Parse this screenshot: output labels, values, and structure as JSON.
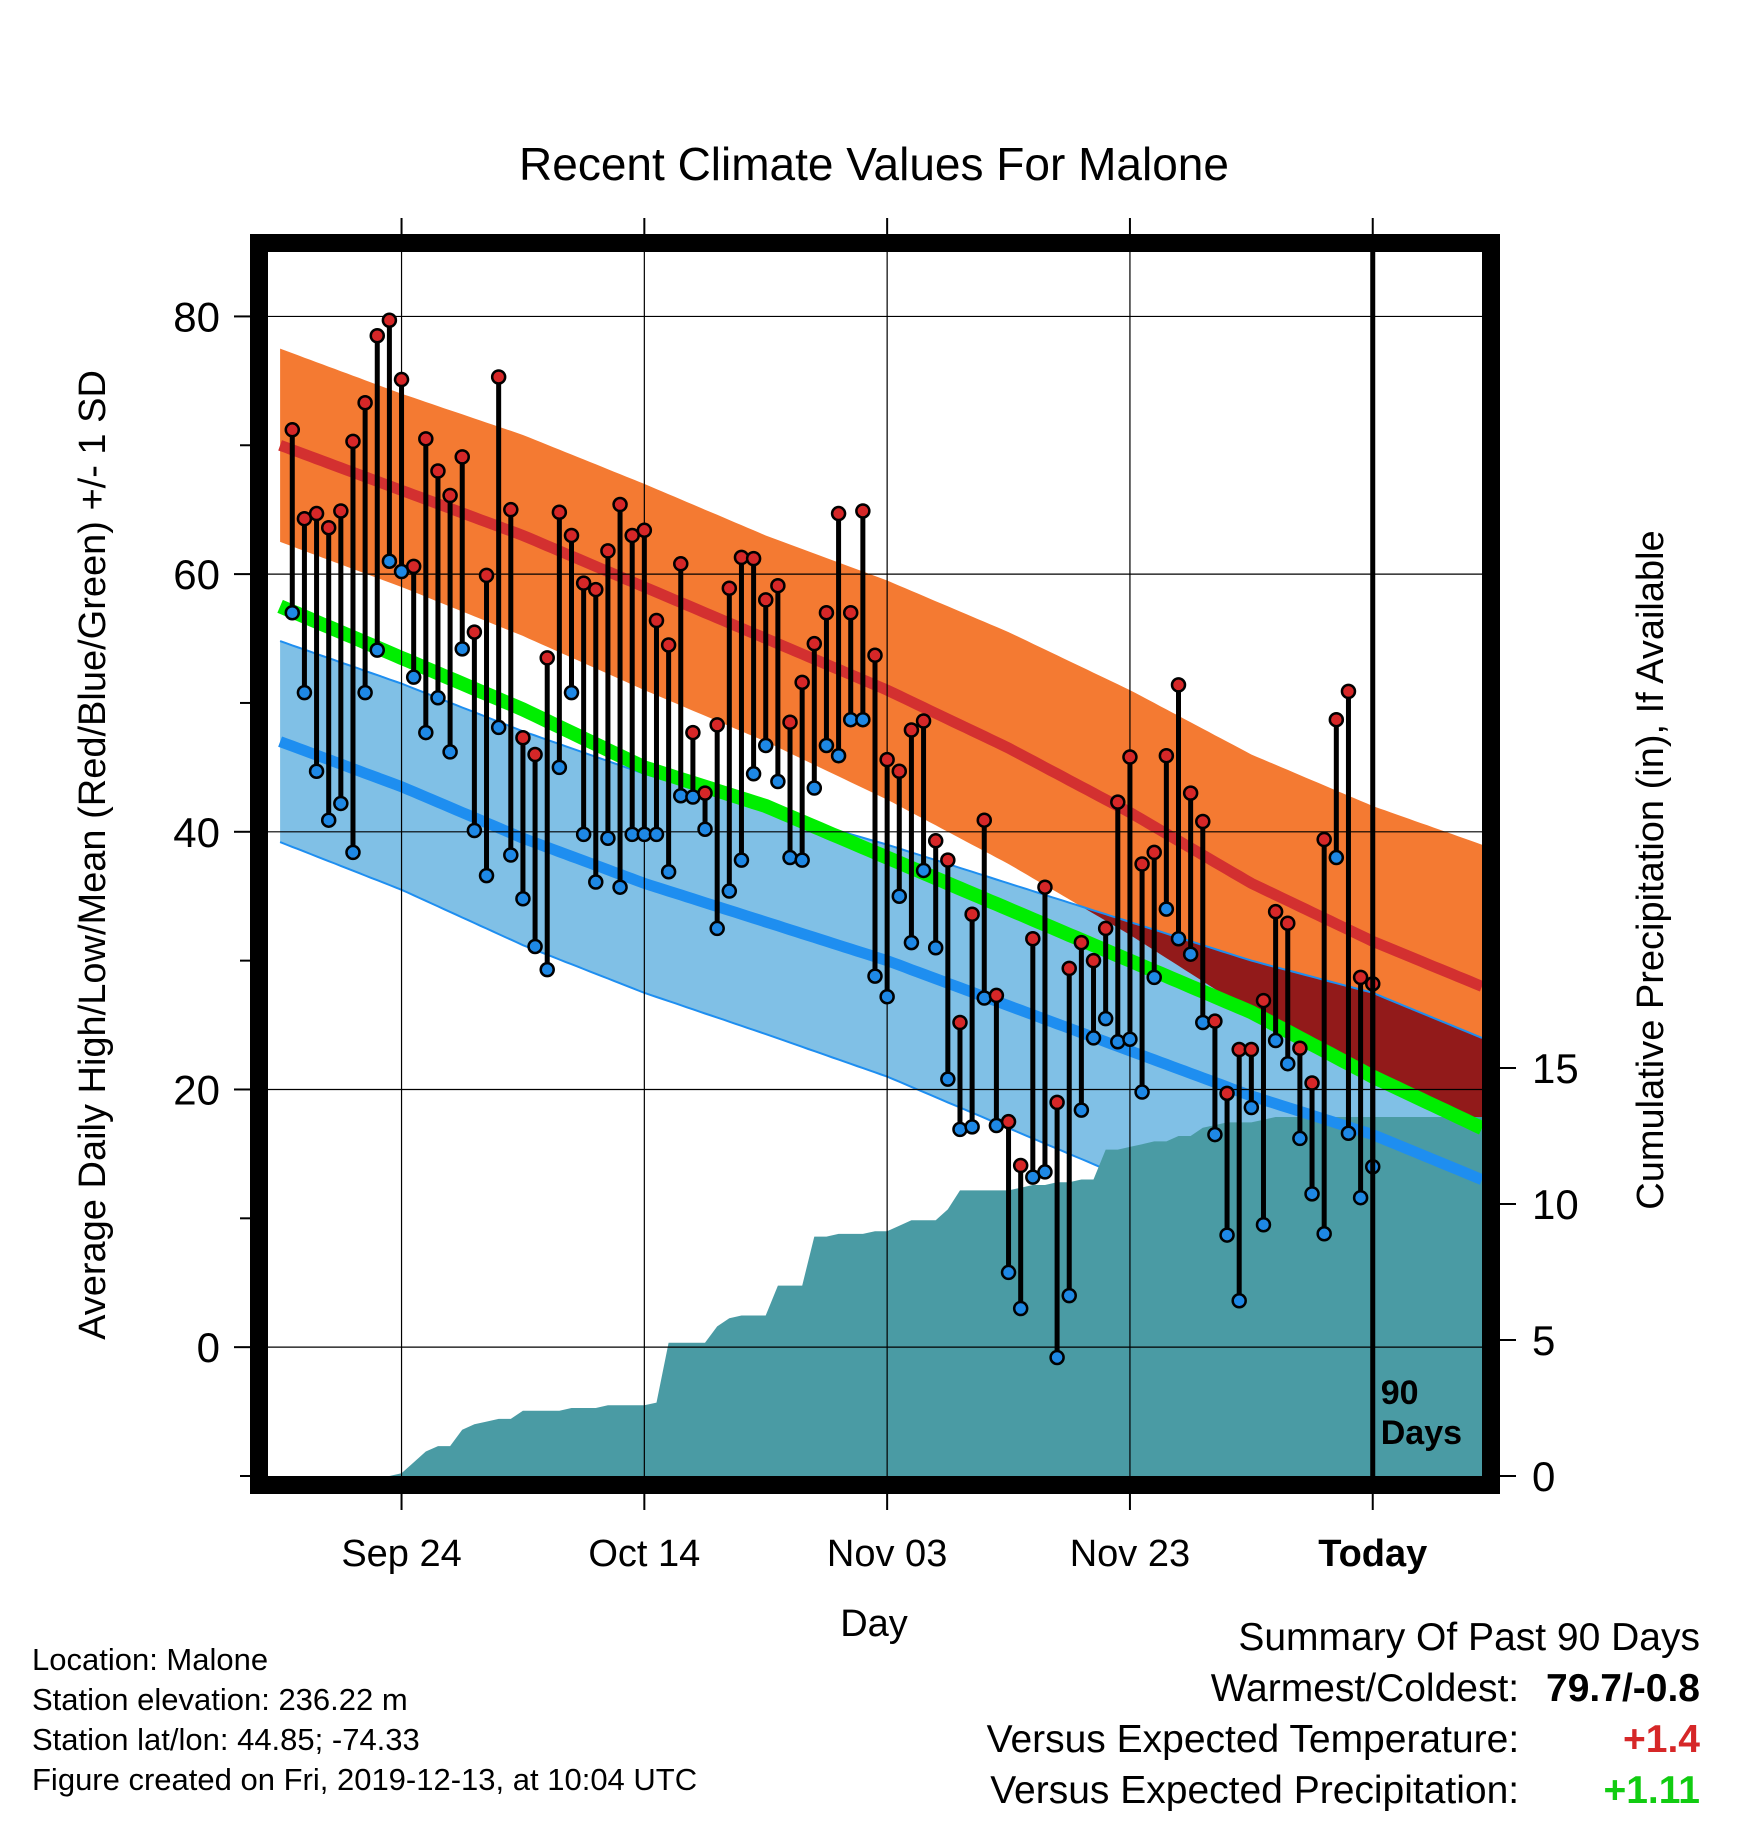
{
  "chart_data": {
    "type": "line",
    "title": "Recent Climate Values For Malone",
    "xlabel": "Day",
    "ylabel_left": "Average Daily High/Low/Mean (Red/Blue/Green) +/- 1 SD",
    "ylabel_right": "Cumulative Precipitation (in), If Available",
    "x_tick_labels": [
      "Sep 24",
      "Oct 14",
      "Nov 03",
      "Nov 23",
      "Today"
    ],
    "x_tick_days": [
      0,
      20,
      40,
      60,
      80
    ],
    "x_range_days": [
      -11,
      89
    ],
    "y_left_ticks": [
      0,
      20,
      40,
      60,
      80
    ],
    "y_left_range": [
      -10,
      85
    ],
    "y_right_ticks": [
      0,
      5,
      10,
      15
    ],
    "y_right_range": [
      0,
      45
    ],
    "today_marker": {
      "day": 80,
      "label_line1": "90",
      "label_line2": "Days"
    },
    "grid": true,
    "colors": {
      "high_band": "#f47a32",
      "high_mean": "#d33030",
      "low_band": "#80c0e6",
      "low_mean": "#1e8ef0",
      "mean_line": "#00ee00",
      "overlap": "#921a1a",
      "precip": "#4a9ba4",
      "high_dot": "#d62728",
      "low_dot": "#1e88e5"
    },
    "normals": {
      "days": [
        -10,
        0,
        10,
        20,
        30,
        40,
        50,
        60,
        70,
        80,
        89
      ],
      "high_mean": [
        70,
        66.5,
        63,
        59,
        55,
        51,
        46.5,
        41.5,
        36,
        31.5,
        28
      ],
      "high_sd": [
        7.5,
        7.5,
        7.8,
        8,
        8,
        8.5,
        9,
        9.5,
        10,
        10.5,
        11
      ],
      "low_mean": [
        47,
        43.5,
        39.5,
        36,
        33,
        30,
        26.5,
        23,
        19.5,
        16.5,
        13
      ],
      "low_sd": [
        7.8,
        8,
        8.3,
        8.5,
        8.7,
        9,
        9.5,
        10,
        10.5,
        11,
        11
      ],
      "mean": [
        57.5,
        53.5,
        49.5,
        45,
        42,
        38,
        34,
        30,
        26,
        21,
        17
      ]
    },
    "observations": {
      "highs": [
        71.2,
        64.3,
        64.7,
        63.6,
        64.9,
        70.3,
        73.3,
        78.5,
        79.7,
        75.1,
        60.6,
        70.5,
        68.0,
        66.1,
        69.1,
        55.5,
        59.9,
        75.3,
        65.0,
        47.3,
        46.0,
        53.5,
        64.8,
        63.0,
        59.3,
        58.8,
        61.8,
        65.4,
        63.0,
        63.4,
        56.4,
        54.5,
        60.8,
        47.7,
        43.0,
        48.3,
        58.9,
        61.3,
        61.2,
        58.0,
        59.1,
        48.5,
        51.6,
        54.6,
        57.0,
        64.7,
        57.0,
        64.9,
        53.7,
        45.6,
        44.7,
        47.9,
        48.6,
        39.3,
        37.8,
        25.2,
        33.6,
        40.9,
        27.3,
        17.5,
        14.1,
        31.7,
        35.7,
        19.0,
        29.4,
        31.4,
        30.0,
        32.5,
        42.3,
        45.8,
        37.5,
        38.4,
        45.9,
        51.4,
        43.0,
        40.8,
        25.3,
        19.7,
        23.1,
        23.1,
        26.9,
        33.8,
        32.9,
        23.2,
        20.5,
        39.4,
        48.7,
        50.9,
        28.7,
        28.2
      ],
      "lows": [
        57.0,
        50.8,
        44.7,
        40.9,
        42.2,
        38.4,
        50.8,
        54.1,
        61.0,
        60.2,
        52.0,
        47.7,
        50.4,
        46.2,
        54.2,
        40.1,
        36.6,
        48.1,
        38.2,
        34.8,
        31.1,
        29.3,
        45.0,
        50.8,
        39.8,
        36.1,
        39.5,
        35.7,
        39.8,
        39.8,
        39.8,
        36.9,
        42.8,
        42.7,
        40.2,
        32.5,
        35.4,
        37.8,
        44.5,
        46.7,
        43.9,
        38.0,
        37.8,
        43.4,
        46.7,
        45.9,
        48.7,
        48.7,
        28.8,
        27.2,
        35.0,
        31.4,
        37.0,
        31.0,
        20.8,
        16.9,
        17.1,
        27.1,
        17.2,
        5.8,
        3.0,
        13.2,
        13.6,
        -0.8,
        4.0,
        18.4,
        24.0,
        25.5,
        23.7,
        23.9,
        19.8,
        28.7,
        34.0,
        31.7,
        30.5,
        25.2,
        16.5,
        8.7,
        3.6,
        18.6,
        9.5,
        23.8,
        22.0,
        16.2,
        11.9,
        8.8,
        38.0,
        16.6,
        11.6,
        14.0
      ]
    },
    "precip_cumulative": {
      "days": [
        -11,
        -1,
        0,
        1,
        2,
        3,
        4,
        5,
        6,
        7,
        8,
        9,
        10,
        11,
        12,
        13,
        14,
        15,
        16,
        17,
        18,
        19,
        20,
        21,
        22,
        23,
        24,
        25,
        26,
        27,
        28,
        29,
        30,
        31,
        32,
        33,
        34,
        35,
        36,
        37,
        38,
        39,
        40,
        41,
        42,
        43,
        44,
        45,
        46,
        47,
        48,
        49,
        50,
        51,
        52,
        53,
        54,
        55,
        56,
        57,
        58,
        59,
        60,
        61,
        62,
        63,
        64,
        65,
        66,
        67,
        68,
        69,
        70,
        71,
        72,
        73,
        74,
        75,
        76,
        77,
        78,
        79,
        80,
        89
      ],
      "values": [
        0,
        0,
        0.1,
        0.5,
        0.9,
        1.1,
        1.1,
        1.7,
        1.9,
        2.0,
        2.1,
        2.1,
        2.4,
        2.4,
        2.4,
        2.4,
        2.5,
        2.5,
        2.5,
        2.6,
        2.6,
        2.6,
        2.6,
        2.7,
        4.9,
        4.9,
        4.9,
        4.9,
        5.5,
        5.8,
        5.9,
        5.9,
        5.9,
        7.0,
        7.0,
        7.0,
        8.8,
        8.8,
        8.9,
        8.9,
        8.9,
        9.0,
        9.0,
        9.2,
        9.4,
        9.4,
        9.4,
        9.8,
        10.5,
        10.5,
        10.5,
        10.5,
        10.5,
        10.6,
        10.7,
        10.7,
        10.8,
        10.8,
        10.9,
        10.9,
        12.0,
        12.0,
        12.1,
        12.2,
        12.3,
        12.3,
        12.5,
        12.5,
        12.8,
        12.9,
        13.0,
        13.0,
        13.0,
        13.1,
        13.2,
        13.2,
        13.2,
        13.2,
        13.2,
        13.2,
        13.2,
        13.2,
        13.2,
        13.2
      ]
    }
  },
  "footer": {
    "location": "Location: Malone",
    "elevation": "Station elevation: 236.22 m",
    "latlon": "Station lat/lon: 44.85; -74.33",
    "created": "Figure created on Fri, 2019-12-13, at 10:04 UTC"
  },
  "summary": {
    "heading": "Summary Of Past 90 Days",
    "warm_cold_label": "Warmest/Coldest:",
    "warm_cold_value": "79.7/-0.8",
    "temp_label": "Versus Expected Temperature:",
    "temp_value": "+1.4",
    "precip_label": "Versus Expected Precipitation:",
    "precip_value": "+1.11"
  }
}
